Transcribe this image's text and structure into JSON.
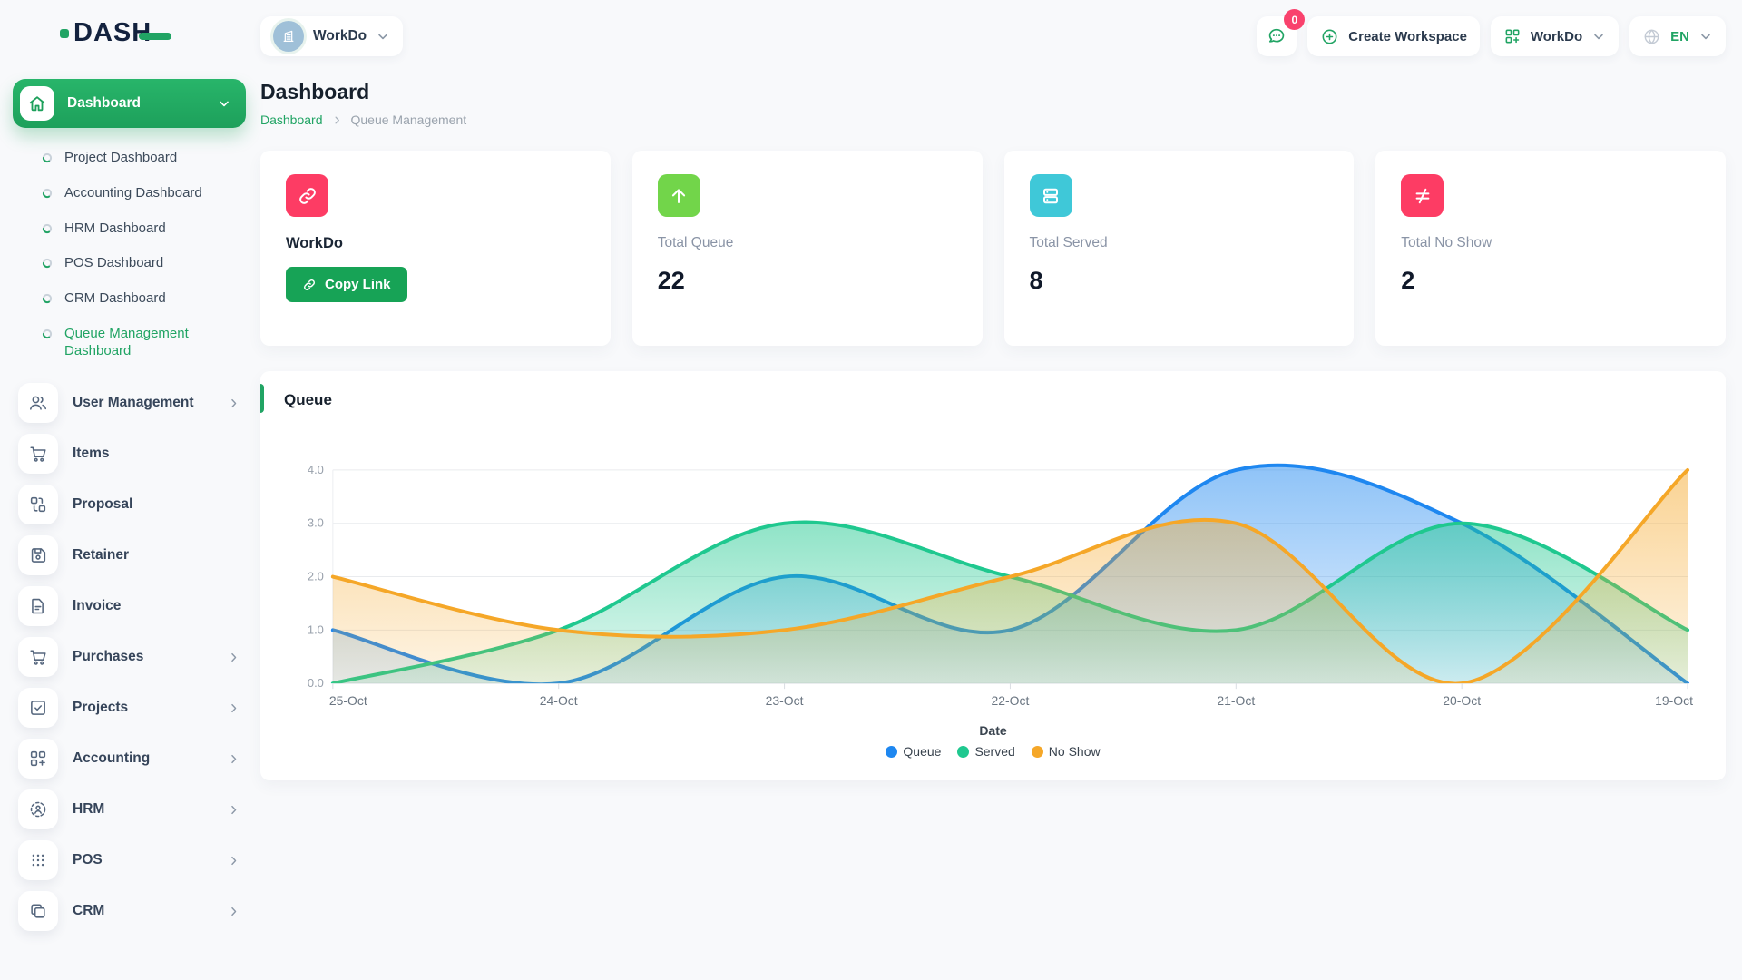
{
  "brand": {
    "name": "DASH"
  },
  "topbar": {
    "workspace_pill": {
      "label": "WorkDo"
    },
    "messages_badge": "0",
    "create_workspace_label": "Create Workspace",
    "workspace_dropdown_label": "WorkDo",
    "language": "EN"
  },
  "sidebar": {
    "dashboard_group": {
      "label": "Dashboard",
      "items": [
        {
          "label": "Project Dashboard",
          "active": false
        },
        {
          "label": "Accounting Dashboard",
          "active": false
        },
        {
          "label": "HRM Dashboard",
          "active": false
        },
        {
          "label": "POS Dashboard",
          "active": false
        },
        {
          "label": "CRM Dashboard",
          "active": false
        },
        {
          "label": "Queue Management Dashboard",
          "active": true
        }
      ]
    },
    "menu": [
      {
        "label": "User Management",
        "icon": "users-icon",
        "expandable": true
      },
      {
        "label": "Items",
        "icon": "cart-icon",
        "expandable": false
      },
      {
        "label": "Proposal",
        "icon": "proposal-icon",
        "expandable": false
      },
      {
        "label": "Retainer",
        "icon": "save-icon",
        "expandable": false
      },
      {
        "label": "Invoice",
        "icon": "invoice-icon",
        "expandable": false
      },
      {
        "label": "Purchases",
        "icon": "cart-icon",
        "expandable": true
      },
      {
        "label": "Projects",
        "icon": "check-square-icon",
        "expandable": true
      },
      {
        "label": "Accounting",
        "icon": "grid-plus-icon",
        "expandable": true
      },
      {
        "label": "HRM",
        "icon": "hrm-icon",
        "expandable": true
      },
      {
        "label": "POS",
        "icon": "dots-grid-icon",
        "expandable": true
      },
      {
        "label": "CRM",
        "icon": "copy-icon",
        "expandable": true
      }
    ]
  },
  "page": {
    "title": "Dashboard",
    "breadcrumb": {
      "root": "Dashboard",
      "current": "Queue Management"
    }
  },
  "stat_cards": [
    {
      "type": "link",
      "icon": "link-icon",
      "icon_bg": "#fd3c64",
      "title": "WorkDo",
      "button_label": "Copy Link"
    },
    {
      "type": "stat",
      "icon": "arrow-up-icon",
      "icon_bg": "#72d54a",
      "label": "Total Queue",
      "value": "22"
    },
    {
      "type": "stat",
      "icon": "server-icon",
      "icon_bg": "#3fc8d8",
      "label": "Total Served",
      "value": "8"
    },
    {
      "type": "stat",
      "icon": "not-equal-icon",
      "icon_bg": "#fd3c64",
      "label": "Total No Show",
      "value": "2"
    }
  ],
  "chart_card": {
    "title": "Queue"
  },
  "chart_data": {
    "type": "area",
    "curve": "smooth",
    "x": [
      "25-Oct",
      "24-Oct",
      "23-Oct",
      "22-Oct",
      "21-Oct",
      "20-Oct",
      "19-Oct"
    ],
    "series": [
      {
        "name": "Queue",
        "color": "#1e87f0",
        "values": [
          1,
          0,
          2,
          1,
          4,
          3,
          0
        ]
      },
      {
        "name": "Served",
        "color": "#1fc88f",
        "values": [
          0,
          1,
          3,
          2,
          1,
          3,
          1
        ]
      },
      {
        "name": "No Show",
        "color": "#f5a728",
        "values": [
          2,
          1,
          1,
          2,
          3,
          0,
          4
        ]
      }
    ],
    "xlabel": "Date",
    "ylim": [
      0,
      4
    ],
    "yticks": [
      "0.0",
      "1.0",
      "2.0",
      "3.0",
      "4.0"
    ],
    "grid": true,
    "legend_position": "bottom"
  }
}
